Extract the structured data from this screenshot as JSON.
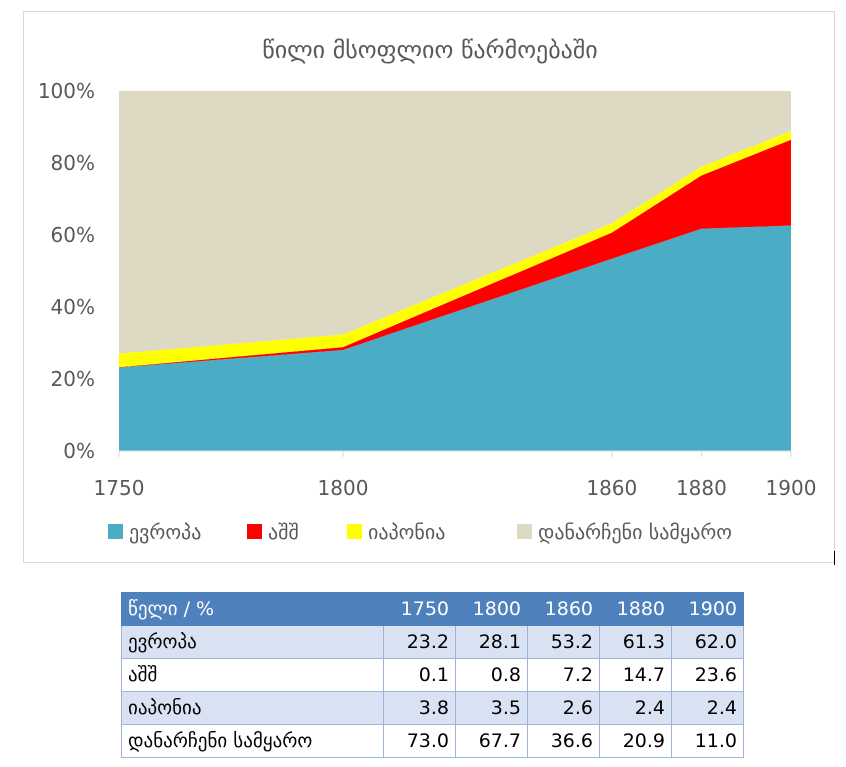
{
  "chart_data": {
    "type": "area",
    "stacked": "percent",
    "title": "წილი მსოფლიო წარმოებაში",
    "x": [
      "1750",
      "1800",
      "1860",
      "1880",
      "1900"
    ],
    "y_ticks": [
      "0%",
      "20%",
      "40%",
      "60%",
      "80%",
      "100%"
    ],
    "ylim": [
      0,
      100
    ],
    "legend_position": "bottom",
    "series": [
      {
        "name": "ევროპა",
        "values": [
          23.2,
          28.1,
          53.2,
          61.3,
          62.0
        ],
        "color": "#4bacc6"
      },
      {
        "name": "აშშ",
        "values": [
          0.1,
          0.8,
          7.2,
          14.7,
          23.6
        ],
        "color": "#ff0000"
      },
      {
        "name": "იაპონია",
        "values": [
          3.8,
          3.5,
          2.6,
          2.4,
          2.4
        ],
        "color": "#ffff00"
      },
      {
        "name": "დანარჩენი სამყარო",
        "values": [
          73.0,
          67.7,
          36.6,
          20.9,
          11.0
        ],
        "color": "#ddd9c3"
      }
    ]
  },
  "table": {
    "header_label": "წელი / %",
    "years": [
      "1750",
      "1800",
      "1860",
      "1880",
      "1900"
    ],
    "rows": [
      {
        "label": "ევროპა",
        "values": [
          "23.2",
          "28.1",
          "53.2",
          "61.3",
          "62.0"
        ]
      },
      {
        "label": "აშშ",
        "values": [
          "0.1",
          "0.8",
          "7.2",
          "14.7",
          "23.6"
        ]
      },
      {
        "label": "იაპონია",
        "values": [
          "3.8",
          "3.5",
          "2.6",
          "2.4",
          "2.4"
        ]
      },
      {
        "label": "დანარჩენი სამყარო",
        "values": [
          "73.0",
          "67.7",
          "36.6",
          "20.9",
          "11.0"
        ]
      }
    ]
  }
}
